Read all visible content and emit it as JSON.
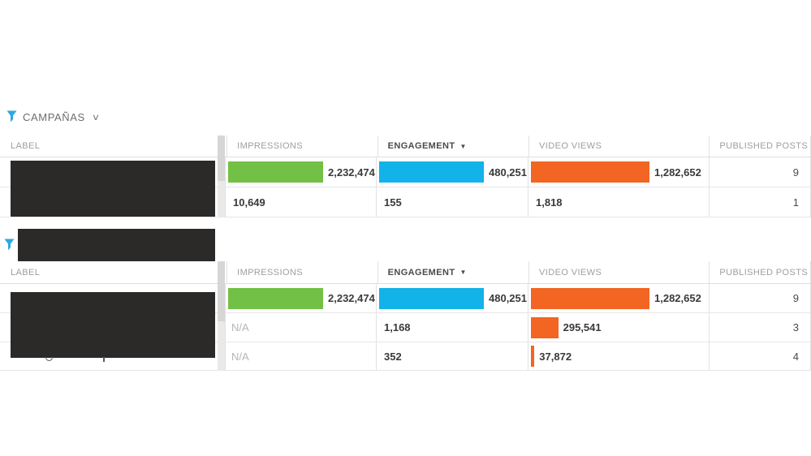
{
  "page": {
    "background": "#ffffff"
  },
  "colors": {
    "impressions_bar": "#72c045",
    "engagement_bar": "#12b3e8",
    "video_views_bar": "#f26522",
    "funnel_icon": "#2aa9e0",
    "redaction": "#2b2a29"
  },
  "filters": {
    "campaigns": {
      "label": "CAMPAÑAS",
      "chevron": "∨"
    },
    "second": {
      "redacted": true
    }
  },
  "columns": {
    "label": "LABEL",
    "impressions": "IMPRESSIONS",
    "engagement": "ENGAGEMENT",
    "video_views": "VIDEO VIEWS",
    "published_posts": "PUBLISHED POSTS",
    "sort_arrow": "▼",
    "sorted_by": "engagement"
  },
  "tables": [
    {
      "rows": [
        {
          "label_redacted": true,
          "impressions": {
            "value": 2232474,
            "display": "2,232,474"
          },
          "engagement": {
            "value": 480251,
            "display": "480,251"
          },
          "video_views": {
            "value": 1282652,
            "display": "1,282,652"
          },
          "published_posts": "9"
        },
        {
          "label_redacted": true,
          "impressions": {
            "value": 10649,
            "display": "10,649"
          },
          "engagement": {
            "value": 155,
            "display": "155"
          },
          "video_views": {
            "value": 1818,
            "display": "1,818"
          },
          "published_posts": "1"
        }
      ]
    },
    {
      "rows": [
        {
          "label_redacted": true,
          "impressions": {
            "value": 2232474,
            "display": "2,232,474"
          },
          "engagement": {
            "value": 480251,
            "display": "480,251"
          },
          "video_views": {
            "value": 1282652,
            "display": "1,282,652"
          },
          "published_posts": "9"
        },
        {
          "label_redacted": true,
          "impressions": {
            "value": null,
            "display": "N/A"
          },
          "engagement": {
            "value": 1168,
            "display": "1,168"
          },
          "video_views": {
            "value": 295541,
            "display": "295,541"
          },
          "published_posts": "3"
        },
        {
          "label_redacted": true,
          "impressions": {
            "value": null,
            "display": "N/A"
          },
          "engagement": {
            "value": 352,
            "display": "352"
          },
          "video_views": {
            "value": 37872,
            "display": "37,872"
          },
          "published_posts": "4"
        }
      ]
    }
  ]
}
